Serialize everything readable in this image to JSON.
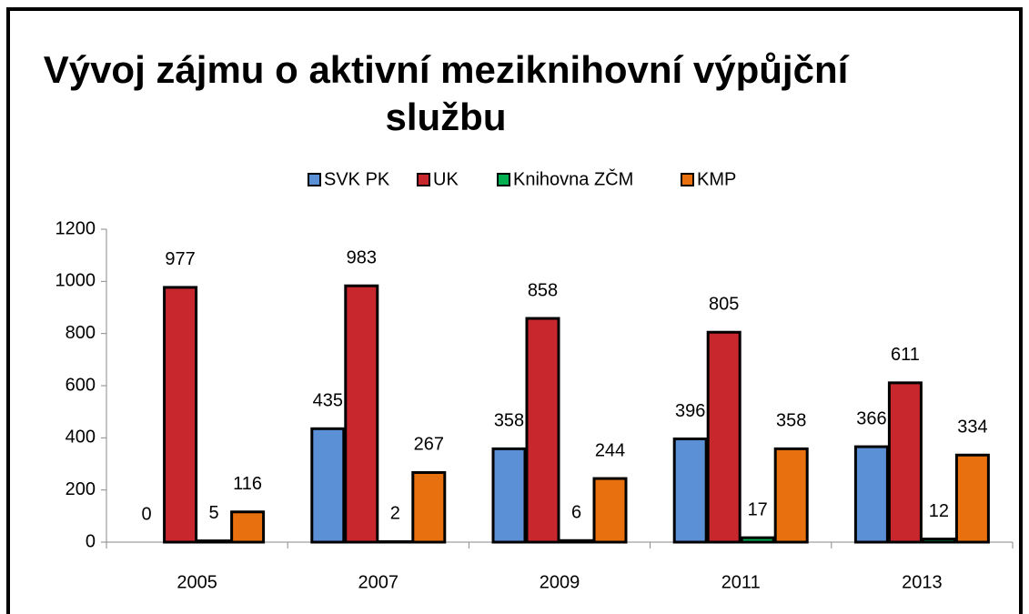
{
  "chart_data": {
    "type": "bar",
    "title": "Vývoj zájmu o aktivní meziknihovní výpůjční službu",
    "title_lines": [
      "Vývoj zájmu o aktivní meziknihovní výpůjční",
      "službu"
    ],
    "categories": [
      "2005",
      "2007",
      "2009",
      "2011",
      "2013"
    ],
    "series": [
      {
        "name": "SVK PK",
        "color": "#5b8fd6",
        "values": [
          0,
          435,
          358,
          396,
          366
        ]
      },
      {
        "name": "UK",
        "color": "#c8282d",
        "values": [
          977,
          983,
          858,
          805,
          611
        ]
      },
      {
        "name": "Knihovna ZČM",
        "color": "#00b050",
        "values": [
          5,
          2,
          6,
          17,
          12
        ]
      },
      {
        "name": "KMP",
        "color": "#e8700e",
        "values": [
          116,
          267,
          244,
          358,
          334
        ]
      }
    ],
    "ylim": [
      0,
      1200
    ],
    "yticks": [
      0,
      200,
      400,
      600,
      800,
      1000,
      1200
    ],
    "legend": "top",
    "grid": false
  }
}
